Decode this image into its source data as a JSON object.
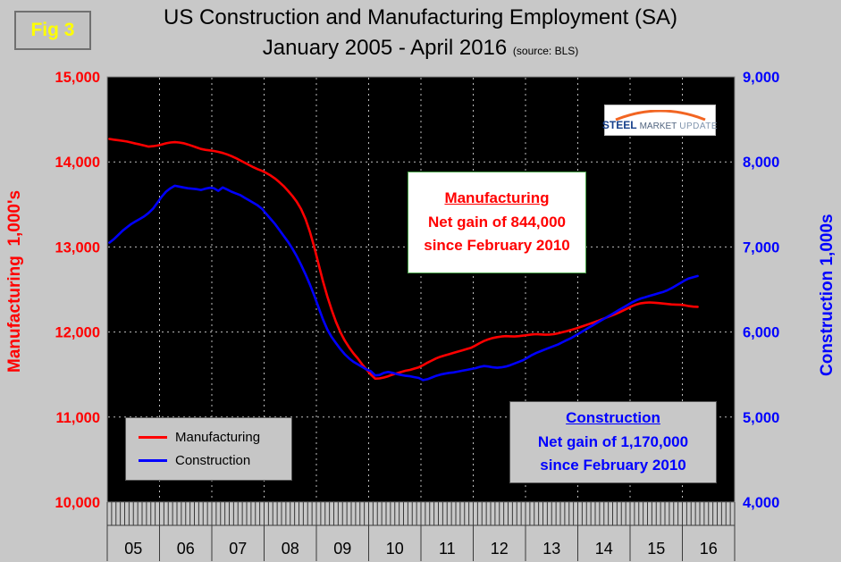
{
  "fig_label": "Fig 3",
  "title_line1": "US Construction and Manufacturing Employment (SA)",
  "title_line2": "January 2005 - April 2016",
  "title_source": "(source: BLS)",
  "left_axis": {
    "title": "Manufacturing  1,000's",
    "color": "#ff0000",
    "ticks": [
      "15,000",
      "14,000",
      "13,000",
      "12,000",
      "11,000",
      "10,000"
    ]
  },
  "right_axis": {
    "title": "Construction 1,000s",
    "color": "#0000ff",
    "ticks": [
      "9,000",
      "8,000",
      "7,000",
      "6,000",
      "5,000",
      "4,000"
    ]
  },
  "x_axis": {
    "years": [
      "05",
      "06",
      "07",
      "08",
      "09",
      "10",
      "11",
      "12",
      "13",
      "14",
      "15",
      "16"
    ]
  },
  "legend": {
    "items": [
      {
        "label": "Manufacturing",
        "color": "#ff0000"
      },
      {
        "label": "Construction",
        "color": "#0000ff"
      }
    ]
  },
  "annotations": {
    "manufacturing": {
      "line1": "Manufacturing",
      "line2": "Net gain of 844,000",
      "line3": "since February 2010",
      "color": "#ff0000"
    },
    "construction": {
      "line1": "Construction",
      "line2": "Net gain of 1,170,000",
      "line3": "since February 2010",
      "color": "#0000ff"
    }
  },
  "logo": {
    "word1": "STEEL",
    "word2": "MARKET",
    "word3": "UPDATE",
    "accent_color": "#f26522"
  },
  "chart_data": {
    "type": "line",
    "title": "US Construction and Manufacturing Employment (SA), January 2005 - April 2016",
    "source": "BLS",
    "x_start": "2005-01",
    "x_end": "2016-04",
    "x_axis_extent_months": 144,
    "left_ylim": [
      10000,
      15000
    ],
    "right_ylim": [
      4000,
      9000
    ],
    "grid": true,
    "legend_position": "lower-left",
    "series": [
      {
        "name": "Manufacturing",
        "axis": "left",
        "color": "#ff0000",
        "monthly_values": [
          14270,
          14262,
          14255,
          14248,
          14240,
          14228,
          14215,
          14205,
          14192,
          14180,
          14185,
          14192,
          14205,
          14218,
          14228,
          14232,
          14228,
          14220,
          14205,
          14188,
          14170,
          14152,
          14142,
          14136,
          14128,
          14118,
          14105,
          14088,
          14068,
          14045,
          14018,
          13992,
          13965,
          13938,
          13915,
          13895,
          13870,
          13840,
          13805,
          13762,
          13715,
          13660,
          13600,
          13530,
          13445,
          13330,
          13180,
          13000,
          12800,
          12600,
          12420,
          12260,
          12120,
          12000,
          11900,
          11820,
          11750,
          11690,
          11620,
          11560,
          11500,
          11452,
          11455,
          11465,
          11480,
          11500,
          11515,
          11530,
          11545,
          11555,
          11570,
          11585,
          11610,
          11640,
          11665,
          11690,
          11710,
          11725,
          11740,
          11755,
          11770,
          11785,
          11800,
          11815,
          11840,
          11870,
          11895,
          11915,
          11930,
          11940,
          11948,
          11952,
          11950,
          11948,
          11952,
          11958,
          11965,
          11972,
          11975,
          11972,
          11968,
          11970,
          11975,
          11985,
          11998,
          12010,
          12025,
          12040,
          12058,
          12075,
          12092,
          12110,
          12128,
          12148,
          12168,
          12188,
          12208,
          12230,
          12255,
          12280,
          12305,
          12325,
          12338,
          12345,
          12348,
          12345,
          12340,
          12335,
          12330,
          12325,
          12322,
          12320,
          12315,
          12305,
          12298,
          12296
        ]
      },
      {
        "name": "Construction",
        "axis": "right",
        "color": "#0000ff",
        "monthly_values": [
          7050,
          7090,
          7140,
          7190,
          7230,
          7270,
          7300,
          7330,
          7360,
          7400,
          7450,
          7520,
          7590,
          7650,
          7690,
          7720,
          7710,
          7700,
          7690,
          7685,
          7680,
          7670,
          7685,
          7695,
          7690,
          7660,
          7700,
          7675,
          7650,
          7630,
          7610,
          7580,
          7550,
          7520,
          7490,
          7450,
          7390,
          7330,
          7270,
          7200,
          7130,
          7060,
          6980,
          6890,
          6790,
          6680,
          6560,
          6430,
          6290,
          6150,
          6030,
          5940,
          5870,
          5800,
          5740,
          5690,
          5650,
          5620,
          5590,
          5560,
          5540,
          5489,
          5495,
          5520,
          5530,
          5520,
          5505,
          5495,
          5485,
          5480,
          5470,
          5460,
          5435,
          5445,
          5465,
          5485,
          5500,
          5510,
          5520,
          5525,
          5535,
          5545,
          5555,
          5565,
          5575,
          5590,
          5600,
          5595,
          5585,
          5580,
          5585,
          5595,
          5610,
          5630,
          5650,
          5670,
          5700,
          5730,
          5755,
          5775,
          5795,
          5815,
          5835,
          5855,
          5880,
          5905,
          5930,
          5960,
          5990,
          6020,
          6050,
          6080,
          6110,
          6140,
          6170,
          6200,
          6230,
          6260,
          6290,
          6320,
          6350,
          6375,
          6395,
          6410,
          6425,
          6440,
          6455,
          6470,
          6490,
          6515,
          6545,
          6575,
          6605,
          6630,
          6645,
          6659
        ]
      }
    ]
  }
}
